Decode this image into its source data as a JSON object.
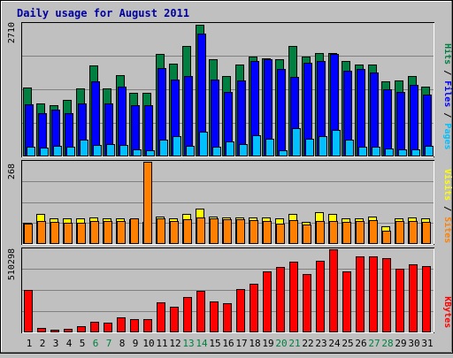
{
  "title": "Daily usage for August 2011",
  "colors": {
    "background": "#C0C0C0",
    "title": "#0000A0",
    "hits": "#008040",
    "files": "#0000FF",
    "pages": "#00C0FF",
    "visits": "#FFFF00",
    "sites": "#FF8000",
    "kbytes": "#FF0000",
    "weekend_label": "#008040",
    "weekday_label": "#000000"
  },
  "chart_data": [
    {
      "type": "bar",
      "title": "Daily usage for August 2011",
      "ylabel_parts": [
        "Pages",
        "Files",
        "Hits"
      ],
      "ymax_label": "2710",
      "ylim": [
        0,
        2710
      ],
      "categories": [
        "1",
        "2",
        "3",
        "4",
        "5",
        "6",
        "7",
        "8",
        "9",
        "10",
        "11",
        "12",
        "13",
        "14",
        "15",
        "16",
        "17",
        "18",
        "19",
        "20",
        "21",
        "22",
        "23",
        "24",
        "25",
        "26",
        "27",
        "28",
        "29",
        "30",
        "31"
      ],
      "series": [
        {
          "name": "Hits",
          "values": [
            1410,
            1080,
            1040,
            1160,
            1400,
            1860,
            1400,
            1670,
            1300,
            1300,
            2100,
            1890,
            2250,
            2700,
            1980,
            1650,
            1870,
            2040,
            2000,
            1980,
            2250,
            2050,
            2120,
            2120,
            1950,
            1870,
            1870,
            1540,
            1560,
            1650,
            1420
          ]
        },
        {
          "name": "Files",
          "values": [
            1060,
            880,
            960,
            890,
            1080,
            1540,
            1090,
            1420,
            1040,
            1050,
            1810,
            1570,
            1650,
            2520,
            1580,
            1320,
            1560,
            1950,
            1990,
            1790,
            1630,
            1920,
            1950,
            2100,
            1750,
            1780,
            1720,
            1380,
            1320,
            1460,
            1260
          ]
        },
        {
          "name": "Pages",
          "values": [
            190,
            180,
            220,
            200,
            340,
            230,
            260,
            230,
            150,
            120,
            350,
            410,
            220,
            500,
            190,
            300,
            260,
            440,
            360,
            120,
            570,
            360,
            420,
            540,
            350,
            200,
            200,
            160,
            150,
            140,
            220
          ]
        }
      ]
    },
    {
      "type": "bar",
      "ylabel_parts": [
        "Sites",
        "Visits"
      ],
      "ymax_label": "268",
      "ylim": [
        0,
        268
      ],
      "categories": [
        "1",
        "2",
        "3",
        "4",
        "5",
        "6",
        "7",
        "8",
        "9",
        "10",
        "11",
        "12",
        "13",
        "14",
        "15",
        "16",
        "17",
        "18",
        "19",
        "20",
        "21",
        "22",
        "23",
        "24",
        "25",
        "26",
        "27",
        "28",
        "29",
        "30",
        "31"
      ],
      "series": [
        {
          "name": "Visits",
          "values": [
            70,
            98,
            84,
            84,
            84,
            87,
            84,
            84,
            81,
            73,
            90,
            84,
            98,
            115,
            90,
            87,
            87,
            87,
            87,
            84,
            98,
            73,
            104,
            98,
            84,
            84,
            90,
            59,
            84,
            87,
            84
          ]
        },
        {
          "name": "Sites",
          "values": [
            67,
            76,
            73,
            70,
            70,
            76,
            76,
            76,
            84,
            268,
            84,
            76,
            81,
            87,
            84,
            81,
            81,
            79,
            76,
            67,
            79,
            62,
            76,
            76,
            73,
            76,
            79,
            42,
            76,
            76,
            73
          ]
        }
      ]
    },
    {
      "type": "bar",
      "ylabel_parts": [
        "KBytes"
      ],
      "ymax_label": "510298",
      "ylim": [
        0,
        510298
      ],
      "categories": [
        "1",
        "2",
        "3",
        "4",
        "5",
        "6",
        "7",
        "8",
        "9",
        "10",
        "11",
        "12",
        "13",
        "14",
        "15",
        "16",
        "17",
        "18",
        "19",
        "20",
        "21",
        "22",
        "23",
        "24",
        "25",
        "26",
        "27",
        "28",
        "29",
        "30",
        "31"
      ],
      "series": [
        {
          "name": "KBytes",
          "values": [
            260000,
            28000,
            18000,
            22000,
            38000,
            65000,
            62000,
            95000,
            80000,
            82000,
            185000,
            155000,
            215000,
            255000,
            190000,
            180000,
            265000,
            300000,
            375000,
            400000,
            435000,
            360000,
            440000,
            510298,
            375000,
            465000,
            465000,
            455000,
            390000,
            420000,
            405000
          ]
        }
      ]
    }
  ],
  "x_axis": {
    "labels": [
      "1",
      "2",
      "3",
      "4",
      "5",
      "6",
      "7",
      "8",
      "9",
      "10",
      "11",
      "12",
      "13",
      "14",
      "15",
      "16",
      "17",
      "18",
      "19",
      "20",
      "21",
      "22",
      "23",
      "24",
      "25",
      "26",
      "27",
      "28",
      "29",
      "30",
      "31"
    ],
    "weekend": [
      false,
      false,
      false,
      false,
      false,
      true,
      true,
      false,
      false,
      false,
      false,
      false,
      true,
      true,
      false,
      false,
      false,
      false,
      false,
      true,
      true,
      false,
      false,
      false,
      false,
      false,
      true,
      true,
      false,
      false,
      false
    ]
  }
}
